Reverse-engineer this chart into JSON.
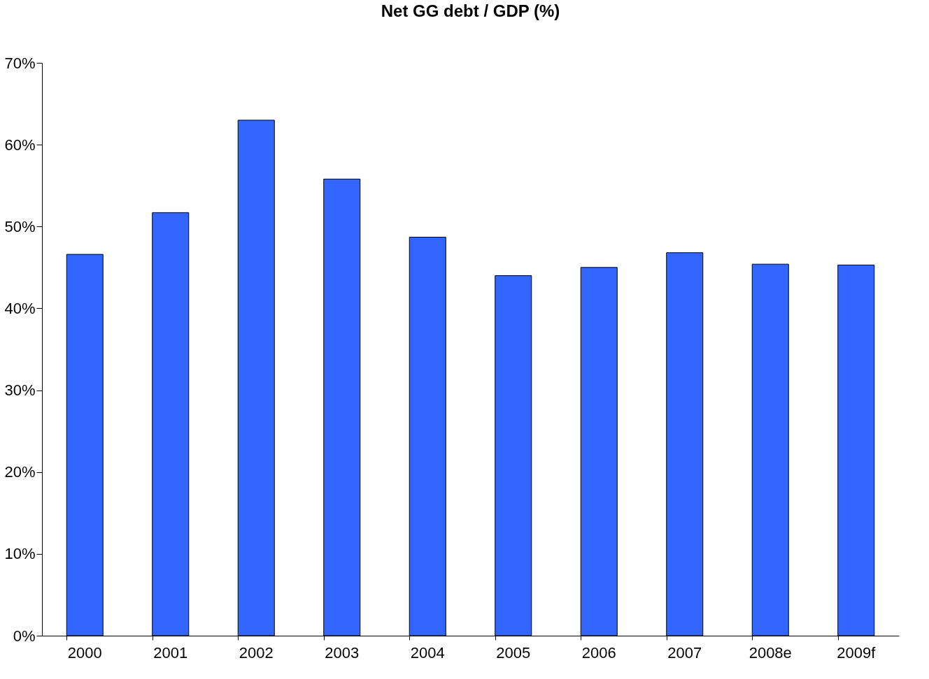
{
  "chart_data": {
    "type": "bar",
    "title": "Net GG debt / GDP (%)",
    "categories": [
      "2000",
      "2001",
      "2002",
      "2003",
      "2004",
      "2005",
      "2006",
      "2007",
      "2008e",
      "2009f"
    ],
    "values": [
      46.6,
      51.7,
      63.0,
      55.8,
      48.7,
      44.0,
      45.0,
      46.8,
      45.4,
      45.3
    ],
    "color": "#3366ff",
    "ylim": [
      0,
      70
    ],
    "yticks": [
      {
        "value": 0,
        "label": "0%"
      },
      {
        "value": 10,
        "label": "10%"
      },
      {
        "value": 20,
        "label": "20%"
      },
      {
        "value": 30,
        "label": "30%"
      },
      {
        "value": 40,
        "label": "40%"
      },
      {
        "value": 50,
        "label": "50%"
      },
      {
        "value": 60,
        "label": "60%"
      },
      {
        "value": 70,
        "label": "70%"
      }
    ],
    "grid": false
  }
}
